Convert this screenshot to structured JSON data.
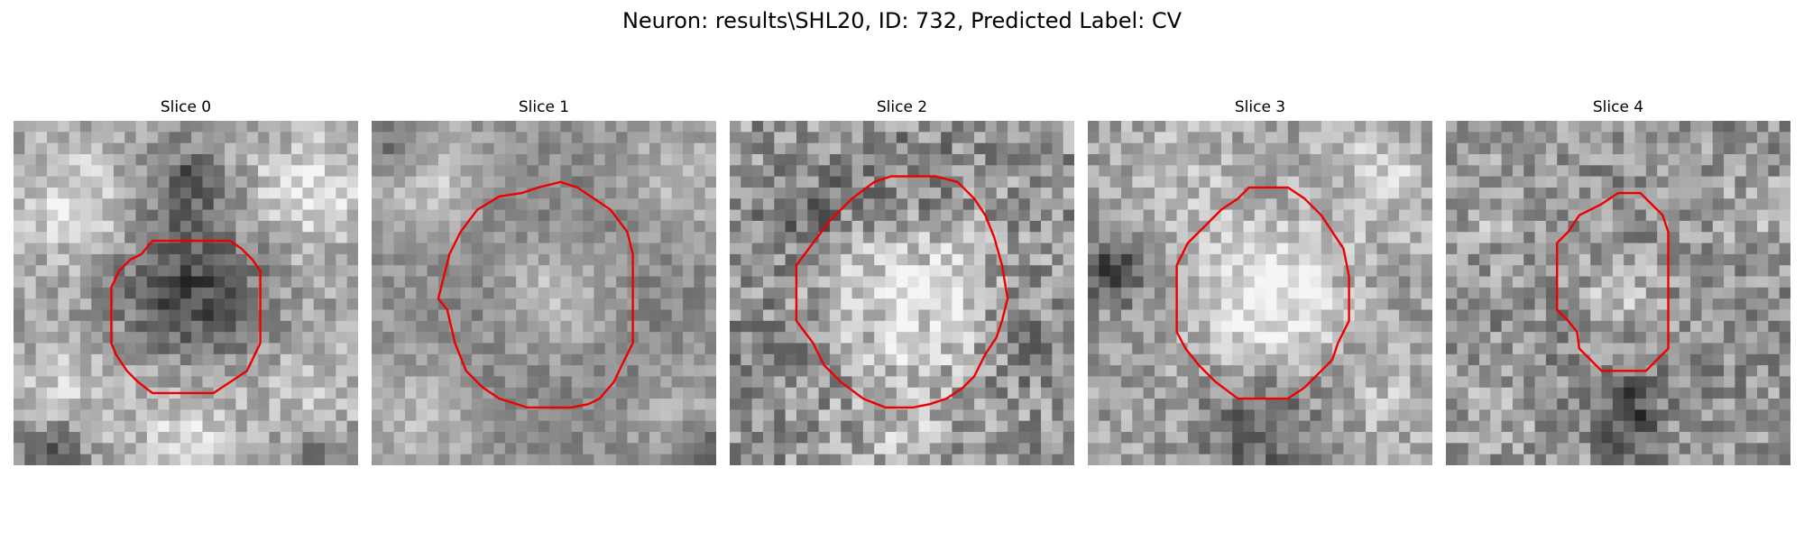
{
  "figure": {
    "title": "Neuron: results\\SHL20, ID: 732, Predicted Label: CV"
  },
  "colors": {
    "contour": "#ee0000",
    "background": "#ffffff"
  },
  "slices": [
    {
      "label": "Slice 0"
    },
    {
      "label": "Slice 1"
    },
    {
      "label": "Slice 2"
    },
    {
      "label": "Slice 3"
    },
    {
      "label": "Slice 4"
    }
  ]
}
